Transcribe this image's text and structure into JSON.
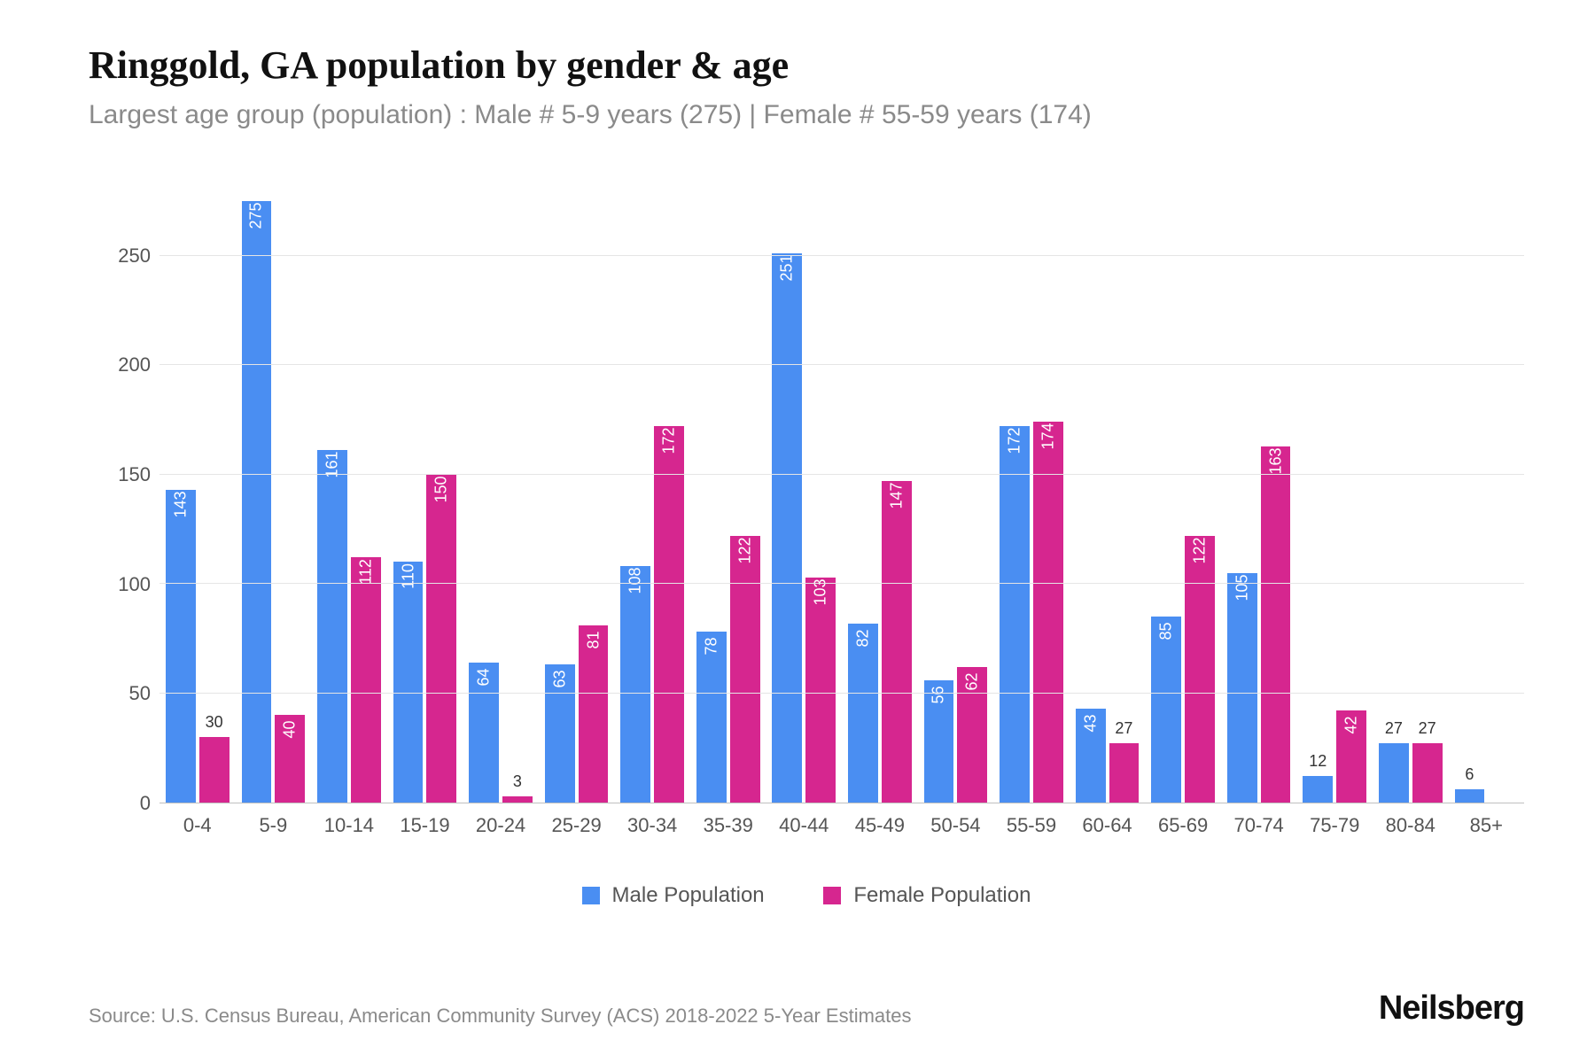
{
  "title": "Ringgold, GA population by gender & age",
  "subtitle": "Largest age group (population) : Male # 5-9 years (275) | Female # 55-59 years (174)",
  "source": "Source: U.S. Census Bureau, American Community Survey (ACS) 2018-2022 5-Year Estimates",
  "brand": "Neilsberg",
  "chart": {
    "type": "bar",
    "grouped": true,
    "ylim": [
      0,
      275
    ],
    "yticks": [
      0,
      50,
      100,
      150,
      200,
      250
    ],
    "ytick_labels": [
      "0",
      "50",
      "100",
      "150",
      "200",
      "250"
    ],
    "categories": [
      "0-4",
      "5-9",
      "10-14",
      "15-19",
      "20-24",
      "25-29",
      "30-34",
      "35-39",
      "40-44",
      "45-49",
      "50-54",
      "55-59",
      "60-64",
      "65-69",
      "70-74",
      "75-79",
      "80-84",
      "85+"
    ],
    "series": [
      {
        "name": "Male Population",
        "key": "male",
        "color": "#4a8ef2",
        "values": [
          143,
          275,
          161,
          110,
          64,
          63,
          108,
          78,
          251,
          82,
          56,
          172,
          43,
          85,
          105,
          12,
          27,
          6
        ]
      },
      {
        "name": "Female Population",
        "key": "female",
        "color": "#d6268f",
        "values": [
          30,
          40,
          112,
          150,
          3,
          81,
          172,
          122,
          103,
          147,
          62,
          174,
          27,
          122,
          163,
          42,
          27,
          0
        ]
      }
    ],
    "background_color": "#ffffff",
    "grid_color": "#e5e5e5",
    "axis_color": "#bfbfbf",
    "label_outside_threshold": 32,
    "title_fontsize": 44,
    "subtitle_fontsize": 30,
    "tick_fontsize": 22,
    "barlabel_fontsize": 18,
    "legend_fontsize": 24,
    "barlabel_color_inside": "#ffffff",
    "barlabel_color_outside": "#333333"
  }
}
